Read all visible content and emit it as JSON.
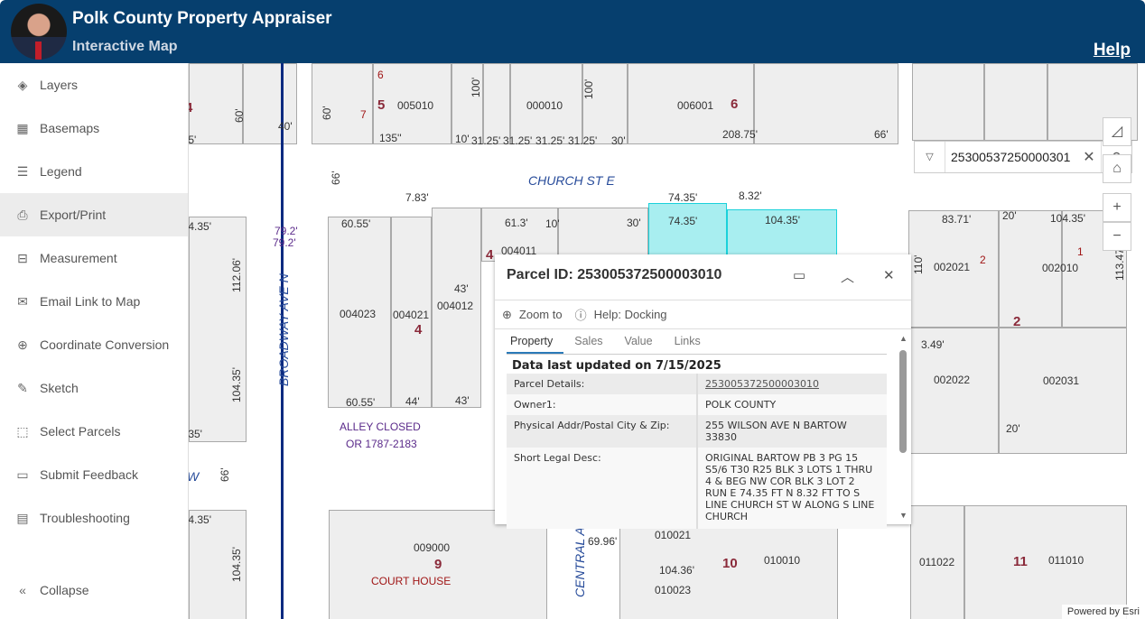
{
  "header": {
    "title": "Polk County Property Appraiser",
    "subtitle": "Interactive Map",
    "help": "Help"
  },
  "sidebar": {
    "items": [
      {
        "label": "Layers",
        "icon": "layers-icon",
        "glyph": "◈"
      },
      {
        "label": "Basemaps",
        "icon": "basemap-grid-icon",
        "glyph": "▦"
      },
      {
        "label": "Legend",
        "icon": "legend-list-icon",
        "glyph": "☰"
      },
      {
        "label": "Export/Print",
        "icon": "print-icon",
        "glyph": "⎙"
      },
      {
        "label": "Measurement",
        "icon": "ruler-icon",
        "glyph": "⊟"
      },
      {
        "label": "Email Link to Map",
        "icon": "envelope-icon",
        "glyph": "✉"
      },
      {
        "label": "Coordinate Conversion",
        "icon": "globe-icon",
        "glyph": "⊕"
      },
      {
        "label": "Sketch",
        "icon": "pencil-icon",
        "glyph": "✎"
      },
      {
        "label": "Select Parcels",
        "icon": "select-icon",
        "glyph": "⬚"
      },
      {
        "label": "Submit Feedback",
        "icon": "feedback-icon",
        "glyph": "▭"
      },
      {
        "label": "Troubleshooting",
        "icon": "troubleshoot-icon",
        "glyph": "▤"
      }
    ],
    "active": "Export/Print",
    "collapse": "Collapse"
  },
  "search": {
    "value": "25300537250000301"
  },
  "attribution": "Powered by Esri",
  "popup": {
    "title": "Parcel ID: 253005372500003010",
    "zoom_to": "Zoom to",
    "help": "Help: Docking",
    "tabs": [
      "Property",
      "Sales",
      "Value",
      "Links"
    ],
    "active_tab": "Property",
    "updated": "Data last updated on 7/15/2025",
    "rows": [
      {
        "k": "Parcel Details:",
        "v": "253005372500003010"
      },
      {
        "k": "Owner1:",
        "v": "POLK COUNTY"
      },
      {
        "k": "Physical Addr/Postal City & Zip:",
        "v": "255 WILSON AVE N BARTOW 33830"
      },
      {
        "k": "Short Legal Desc:",
        "v": "ORIGINAL BARTOW PB 3 PG 15 S5/6 T30 R25 BLK 3 LOTS 1 THRU 4 & BEG NW COR BLK 3 LOT 2 RUN E 74.35 FT N 8.32 FT TO S LINE CHURCH ST W ALONG S LINE CHURCH"
      }
    ]
  },
  "map": {
    "labels": [
      "6",
      "5",
      "005010",
      "7",
      "60'",
      "100'",
      "000010",
      "100'",
      "135''",
      "10'",
      "31.25'",
      "31.25'",
      "31.25'",
      "31.25'",
      "30'",
      "006001",
      "6",
      "208.75'",
      "66'",
      "60'",
      "4",
      ".5'",
      "40'",
      "66'",
      "CHURCH ST E",
      "7.83'",
      "74.35'",
      "8.32'",
      "74.35'",
      "104.35'",
      "60.55'",
      "61.3'",
      "10'",
      "30'",
      "4",
      "004011",
      "43'",
      "004012",
      "004023",
      "004021",
      "4",
      "112.06'",
      "79.2'",
      "79.2'",
      "BROADWAY AVE N",
      "104.35'",
      ".4.35'",
      "60.55'",
      "44'",
      "43'",
      "ALLEY CLOSED",
      "OR 1787-2183",
      ".35'",
      "W",
      "66'",
      ".4.35'",
      "104.35'",
      "009000",
      "9",
      "COURT HOUSE",
      "CENTRAL A",
      "69.96'",
      "010021",
      "104.36'",
      "010023",
      "10",
      "010010",
      "011022",
      "11",
      "011010",
      "83.71'",
      "20'",
      "104.35'",
      "110'",
      "002021",
      "2",
      "1",
      "002010",
      "113.47",
      "2",
      "3.49'",
      "002022",
      "002031",
      "20'"
    ]
  }
}
